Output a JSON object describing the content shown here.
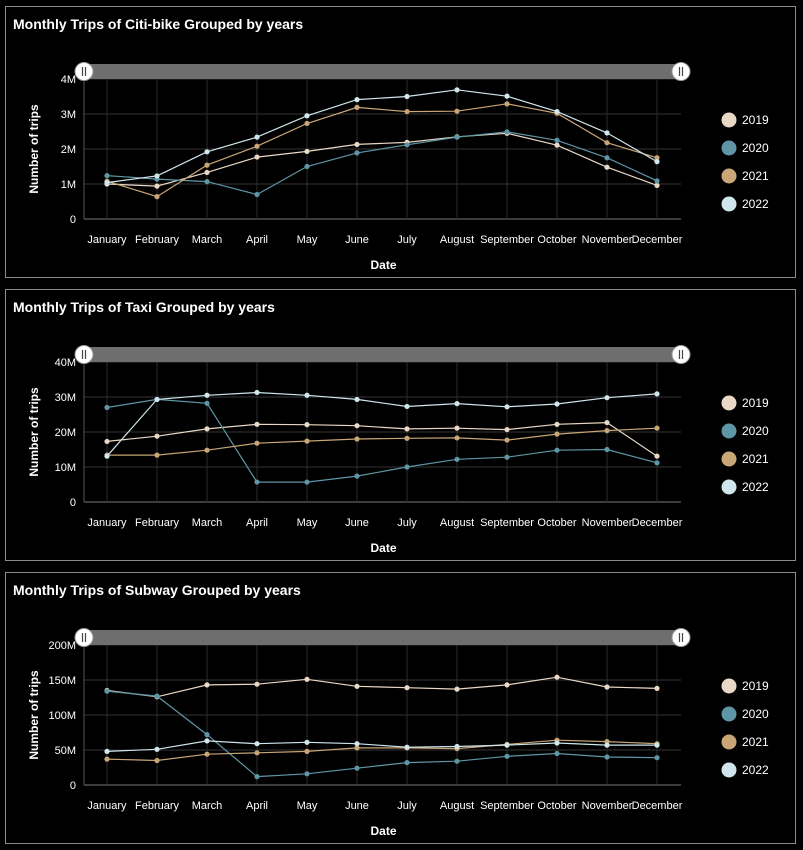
{
  "colors": {
    "2019": "#ead8c6",
    "2020": "#5f96a6",
    "2021": "#c9a676",
    "2022": "#cfe7ec"
  },
  "chart_data": [
    {
      "type": "line",
      "title": "Monthly Trips of Citi-bike Grouped by years",
      "xlabel": "Date",
      "ylabel": "Number of trips",
      "categories": [
        "January",
        "February",
        "March",
        "April",
        "May",
        "June",
        "July",
        "August",
        "September",
        "October",
        "November",
        "December"
      ],
      "yticks": [
        0,
        1000000,
        2000000,
        3000000,
        4000000
      ],
      "ytick_labels": [
        "0",
        "1M",
        "2M",
        "3M",
        "4M"
      ],
      "ylim": [
        0,
        4000000
      ],
      "grid": true,
      "legend_position": "right",
      "series": [
        {
          "name": "2019",
          "values": [
            1000000,
            940000,
            1330000,
            1770000,
            1930000,
            2130000,
            2190000,
            2350000,
            2450000,
            2110000,
            1480000,
            960000
          ]
        },
        {
          "name": "2020",
          "values": [
            1240000,
            1140000,
            1070000,
            700000,
            1500000,
            1890000,
            2120000,
            2340000,
            2490000,
            2250000,
            1750000,
            1090000
          ]
        },
        {
          "name": "2021",
          "values": [
            1080000,
            640000,
            1540000,
            2080000,
            2730000,
            3190000,
            3070000,
            3080000,
            3290000,
            3020000,
            2180000,
            1750000
          ]
        },
        {
          "name": "2022",
          "values": [
            1040000,
            1230000,
            1920000,
            2340000,
            2950000,
            3410000,
            3500000,
            3690000,
            3510000,
            3070000,
            2460000,
            1640000
          ]
        }
      ]
    },
    {
      "type": "line",
      "title": "Monthly Trips of Taxi Grouped by years",
      "xlabel": "Date",
      "ylabel": "Number of trips",
      "categories": [
        "January",
        "February",
        "March",
        "April",
        "May",
        "June",
        "July",
        "August",
        "September",
        "October",
        "November",
        "December"
      ],
      "yticks": [
        0,
        10000000,
        20000000,
        30000000,
        40000000
      ],
      "ytick_labels": [
        "0",
        "10M",
        "20M",
        "30M",
        "40M"
      ],
      "ylim": [
        0,
        40000000
      ],
      "grid": true,
      "legend_position": "right",
      "series": [
        {
          "name": "2019",
          "values": [
            17300000,
            18800000,
            20900000,
            22200000,
            22100000,
            21800000,
            20900000,
            21100000,
            20700000,
            22200000,
            22700000,
            13100000
          ]
        },
        {
          "name": "2020",
          "values": [
            27000000,
            29300000,
            28200000,
            5700000,
            5700000,
            7400000,
            10000000,
            12200000,
            12800000,
            14800000,
            15000000,
            11200000
          ]
        },
        {
          "name": "2021",
          "values": [
            13400000,
            13400000,
            14800000,
            16800000,
            17400000,
            18000000,
            18200000,
            18300000,
            17700000,
            19400000,
            20400000,
            21100000
          ]
        },
        {
          "name": "2022",
          "values": [
            13100000,
            29300000,
            30500000,
            31300000,
            30500000,
            29300000,
            27300000,
            28100000,
            27200000,
            28000000,
            29800000,
            30900000
          ]
        }
      ]
    },
    {
      "type": "line",
      "title": "Monthly Trips of Subway Grouped by years",
      "xlabel": "Date",
      "ylabel": "Number of trips",
      "categories": [
        "January",
        "February",
        "March",
        "April",
        "May",
        "June",
        "July",
        "August",
        "September",
        "October",
        "November",
        "December"
      ],
      "yticks": [
        0,
        50000000,
        100000000,
        150000000,
        200000000
      ],
      "ytick_labels": [
        "0",
        "50M",
        "100M",
        "150M",
        "200M"
      ],
      "ylim": [
        0,
        200000000
      ],
      "grid": true,
      "legend_position": "right",
      "series": [
        {
          "name": "2019",
          "values": [
            135000000,
            126000000,
            143000000,
            144000000,
            151000000,
            141000000,
            139000000,
            137000000,
            143000000,
            154000000,
            140000000,
            138000000
          ]
        },
        {
          "name": "2020",
          "values": [
            134000000,
            127000000,
            72000000,
            12000000,
            16000000,
            24000000,
            32000000,
            34000000,
            41000000,
            45000000,
            40000000,
            39000000
          ]
        },
        {
          "name": "2021",
          "values": [
            37000000,
            35000000,
            44000000,
            46000000,
            48000000,
            53000000,
            53000000,
            52000000,
            58000000,
            64000000,
            62000000,
            59000000
          ]
        },
        {
          "name": "2022",
          "values": [
            48000000,
            51000000,
            63000000,
            59000000,
            61000000,
            59000000,
            54000000,
            55000000,
            57000000,
            60000000,
            57000000,
            57000000
          ]
        }
      ]
    }
  ]
}
